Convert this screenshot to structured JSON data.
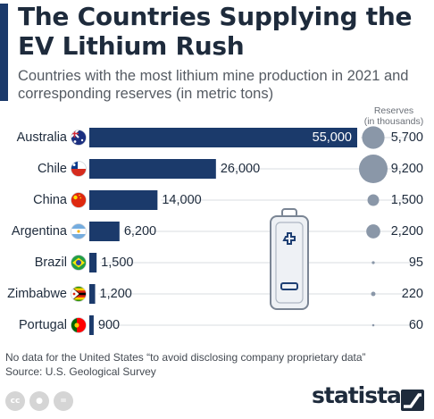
{
  "title": "The Countries Supplying the EV Lithium Rush",
  "subtitle": "Countries with the most lithium mine production in 2021 and corresponding reserves (in metric tons)",
  "footnote_line1": "No data for the United States “to avoid disclosing company proprietary data”",
  "footnote_line2": "Source: U.S. Geological Survey",
  "brand": "statista",
  "colors": {
    "bar": "#1b3a6b",
    "bubble": "#8a97a8",
    "gridline": "#d9dde2",
    "text": "#1e2b3c"
  },
  "icons": [
    "battery-icon",
    "cc-icon",
    "attribution-icon",
    "no-derivatives-icon",
    "statista-logo-icon"
  ],
  "chart_data": {
    "type": "bar",
    "orientation": "horizontal",
    "categories": [
      "Australia",
      "Chile",
      "China",
      "Argentina",
      "Brazil",
      "Zimbabwe",
      "Portugal"
    ],
    "series": [
      {
        "values": [
          55000,
          26000,
          14000,
          6200,
          1500,
          1200,
          900
        ]
      }
    ],
    "value_labels": [
      "55,000",
      "26,000",
      "14,000",
      "6,200",
      "1,500",
      "1,200",
      "900"
    ],
    "reserves": {
      "header": [
        "Reserves",
        "(in thousands)"
      ],
      "values": [
        5700,
        9200,
        1500,
        2200,
        95,
        220,
        60
      ],
      "labels": [
        "5,700",
        "9,200",
        "1,500",
        "2,200",
        "95",
        "220",
        "60"
      ]
    },
    "title": "The Countries Supplying the EV Lithium Rush",
    "xlabel": "",
    "ylabel": "",
    "xlim": [
      0,
      55000
    ],
    "legend": "none",
    "grid": false
  }
}
